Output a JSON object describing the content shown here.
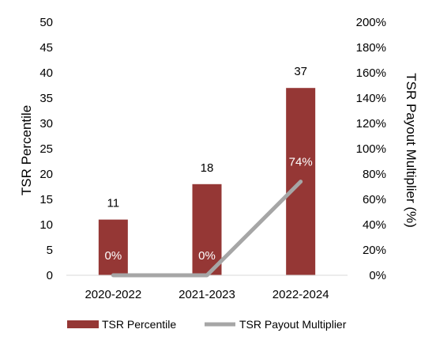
{
  "chart_data": {
    "type": "bar",
    "categories": [
      "2020-2022",
      "2021-2023",
      "2022-2024"
    ],
    "series": [
      {
        "name": "TSR Percentile",
        "kind": "bar",
        "axis": "left",
        "values": [
          11,
          18,
          37
        ],
        "labels": [
          "11",
          "18",
          "37"
        ],
        "color": "#953735"
      },
      {
        "name": "TSR Payout Multiplier",
        "kind": "line",
        "axis": "right",
        "values": [
          0,
          0,
          74
        ],
        "labels": [
          "0%",
          "0%",
          "74%"
        ],
        "color": "#a6a6a6"
      }
    ],
    "ylabel": "TSR Percentile",
    "y2label": "TSR Payout Multiplier (%)",
    "ylim": [
      0,
      50
    ],
    "y2lim": [
      0,
      200
    ],
    "yticks": [
      "0",
      "5",
      "10",
      "15",
      "20",
      "25",
      "30",
      "35",
      "40",
      "45",
      "50"
    ],
    "y2ticks": [
      "0%",
      "20%",
      "40%",
      "60%",
      "80%",
      "100%",
      "120%",
      "140%",
      "160%",
      "180%",
      "200%"
    ],
    "grid": false,
    "legend": "bottom"
  }
}
